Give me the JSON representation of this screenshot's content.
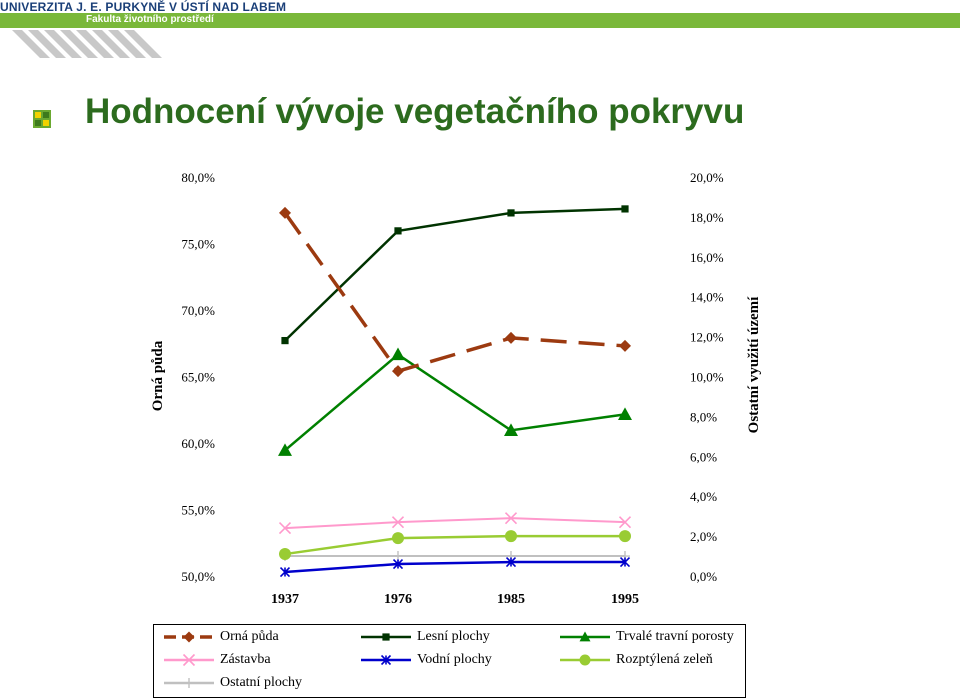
{
  "header": {
    "university": "UNIVERZITA J. E. PURKYNĚ V ÚSTÍ NAD LABEM",
    "faculty": "Fakulta životního prostředí"
  },
  "slide": {
    "title": "Hodnocení vývoje vegetačního pokryvu"
  },
  "colors": {
    "brand_green": "#7ab83a",
    "title_green": "#2c6b1e",
    "university_blue": "#1a3f78"
  },
  "chart_data": {
    "type": "line",
    "title": "",
    "categories": [
      "1937",
      "1976",
      "1985",
      "1995"
    ],
    "ylabel_left": "Orná půda",
    "ylabel_right": "Ostatní využití území",
    "ylim_left": [
      0.5,
      0.8
    ],
    "ylim_right": [
      0.0,
      0.2
    ],
    "yticks_left": [
      "50,0%",
      "55,0%",
      "60,0%",
      "65,0%",
      "70,0%",
      "75,0%",
      "80,0%"
    ],
    "yticks_right": [
      "0,0%",
      "2,0%",
      "4,0%",
      "6,0%",
      "8,0%",
      "10,0%",
      "12,0%",
      "14,0%",
      "16,0%",
      "18,0%",
      "20,0%"
    ],
    "legend_position": "bottom",
    "series": [
      {
        "name": "Orná půda",
        "axis": "left",
        "values": [
          0.773,
          0.654,
          0.679,
          0.673
        ],
        "color": "#9c3a10",
        "marker": "diamond",
        "dashed": true
      },
      {
        "name": "Lesní plochy",
        "axis": "right",
        "values": [
          0.118,
          0.173,
          0.182,
          0.184
        ],
        "color": "#003300",
        "marker": "square",
        "dashed": false
      },
      {
        "name": "Trvalé travní porosty",
        "axis": "right",
        "values": [
          0.063,
          0.111,
          0.073,
          0.081
        ],
        "color": "#008000",
        "marker": "triangle",
        "dashed": false
      },
      {
        "name": "Zástavba",
        "axis": "right",
        "values": [
          0.024,
          0.027,
          0.029,
          0.027
        ],
        "color": "#ff99cc",
        "marker": "x",
        "dashed": false
      },
      {
        "name": "Vodní plochy",
        "axis": "right",
        "values": [
          0.002,
          0.006,
          0.007,
          0.007
        ],
        "color": "#0000cc",
        "marker": "star",
        "dashed": false
      },
      {
        "name": "Rozptýlená zeleň",
        "axis": "right",
        "values": [
          0.011,
          0.019,
          0.02,
          0.02
        ],
        "color": "#99cc33",
        "marker": "circle",
        "dashed": false
      },
      {
        "name": "Ostatní plochy",
        "axis": "right",
        "values": [
          0.01,
          0.01,
          0.01,
          0.01
        ],
        "color": "#c0c0c0",
        "marker": "plus",
        "dashed": false
      }
    ]
  }
}
